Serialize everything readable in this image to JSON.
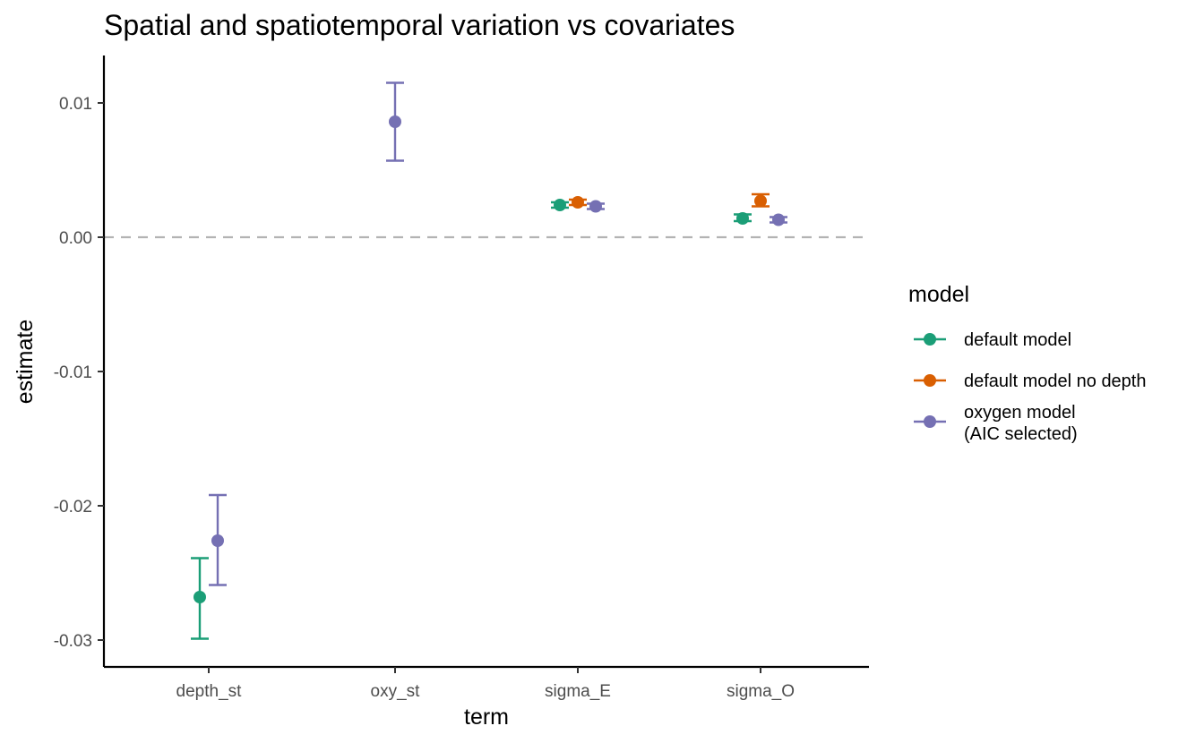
{
  "chart_data": {
    "type": "scatter",
    "subtype": "pointrange",
    "title": "Spatial and spatiotemporal variation vs covariates",
    "xlabel": "term",
    "ylabel": "estimate",
    "categories": [
      "depth_st",
      "oxy_st",
      "sigma_E",
      "sigma_O"
    ],
    "ylim": [
      -0.032,
      0.0135
    ],
    "yticks": [
      -0.03,
      -0.02,
      -0.01,
      0.0,
      0.01
    ],
    "ytick_labels": [
      "-0.03",
      "-0.02",
      "-0.01",
      "0.00",
      "0.01"
    ],
    "reference_line": {
      "y": 0,
      "style": "dashed",
      "color": "#b3b3b3"
    },
    "grid": false,
    "legend": {
      "title": "model",
      "position": "right"
    },
    "series": [
      {
        "name": "default model",
        "color": "#1B9E77",
        "points": [
          {
            "category": "depth_st",
            "estimate": -0.0268,
            "lower": -0.0299,
            "upper": -0.0239
          },
          {
            "category": "sigma_E",
            "estimate": 0.0024,
            "lower": 0.0022,
            "upper": 0.0026
          },
          {
            "category": "sigma_O",
            "estimate": 0.0014,
            "lower": 0.0012,
            "upper": 0.0017
          }
        ]
      },
      {
        "name": "default model no depth",
        "color": "#D95F02",
        "points": [
          {
            "category": "sigma_E",
            "estimate": 0.0026,
            "lower": 0.0024,
            "upper": 0.0028
          },
          {
            "category": "sigma_O",
            "estimate": 0.0027,
            "lower": 0.0023,
            "upper": 0.0032
          }
        ]
      },
      {
        "name": "oxygen model\n(AIC selected)",
        "color": "#7570B3",
        "points": [
          {
            "category": "depth_st",
            "estimate": -0.0226,
            "lower": -0.0259,
            "upper": -0.0192
          },
          {
            "category": "oxy_st",
            "estimate": 0.0086,
            "lower": 0.0057,
            "upper": 0.0115
          },
          {
            "category": "sigma_E",
            "estimate": 0.0023,
            "lower": 0.0021,
            "upper": 0.0025
          },
          {
            "category": "sigma_O",
            "estimate": 0.0013,
            "lower": 0.0011,
            "upper": 0.0015
          }
        ]
      }
    ]
  }
}
